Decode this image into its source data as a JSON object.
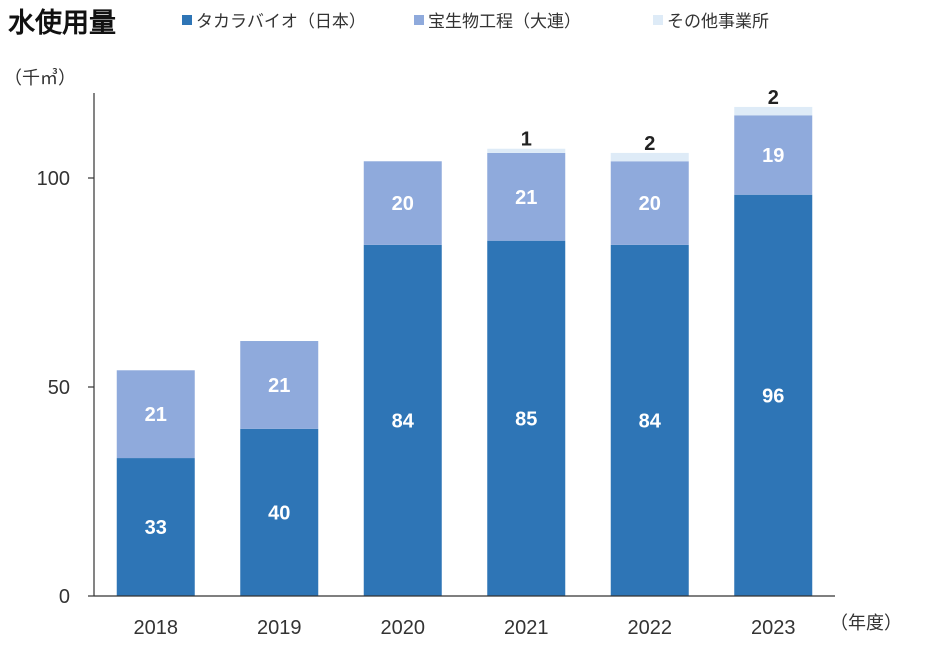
{
  "chart_data": {
    "type": "bar",
    "stacked": true,
    "title": "水使用量",
    "unit_label": "（千㎥）",
    "x_unit_label": "（年度）",
    "categories": [
      "2018",
      "2019",
      "2020",
      "2021",
      "2022",
      "2023"
    ],
    "series": [
      {
        "name": "タカラバイオ（日本）",
        "values": [
          33,
          40,
          84,
          85,
          84,
          96
        ],
        "color": "#2e75b6",
        "label_color": "#ffffff"
      },
      {
        "name": "宝生物工程（大連）",
        "values": [
          21,
          21,
          20,
          21,
          20,
          19
        ],
        "color": "#8faadc",
        "label_color": "#ffffff"
      },
      {
        "name": "その他事業所",
        "values": [
          null,
          null,
          null,
          1,
          2,
          2
        ],
        "color": "#deebf7",
        "label_color": "#222222"
      }
    ],
    "ylim": [
      0,
      120
    ],
    "y_ticks": [
      0,
      50,
      100
    ],
    "grid": false,
    "legend_position": "top"
  }
}
